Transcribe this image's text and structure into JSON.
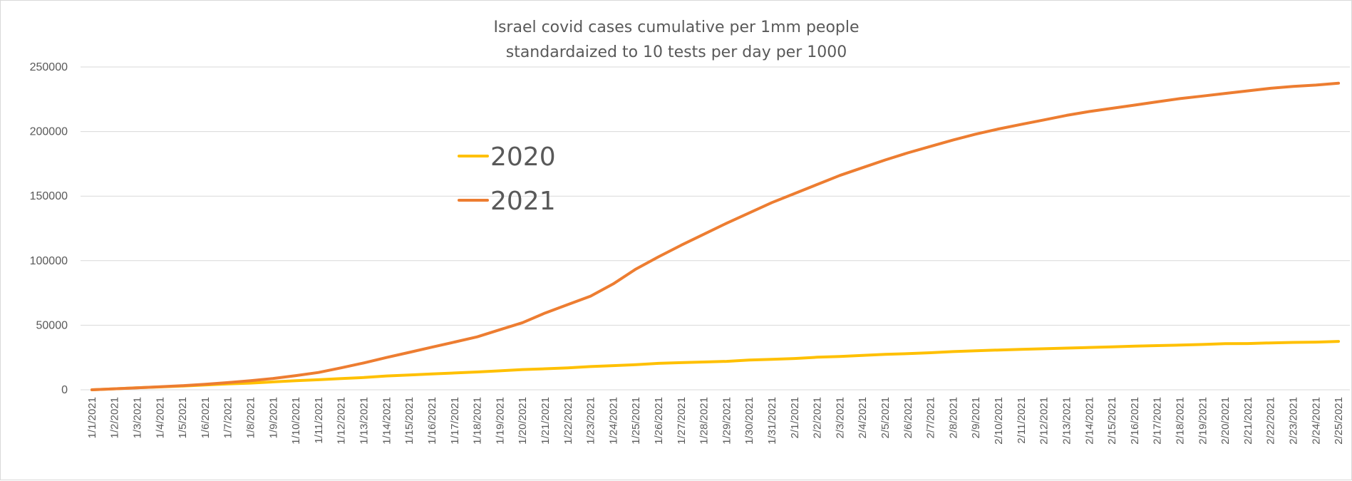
{
  "chart_data": {
    "type": "line",
    "title": "Israel covid cases cumulative per 1mm people",
    "subtitle": "standardaized to 10 tests per day per 1000",
    "xlabel": "",
    "ylabel": "",
    "ylim": [
      0,
      250000
    ],
    "yticks": [
      0,
      50000,
      100000,
      150000,
      200000,
      250000
    ],
    "ytick_labels": [
      "0",
      "50000",
      "100000",
      "150000",
      "200000",
      "250000"
    ],
    "grid": true,
    "legend_position": "center-left",
    "categories": [
      "1/1/2021",
      "1/2/2021",
      "1/3/2021",
      "1/4/2021",
      "1/5/2021",
      "1/6/2021",
      "1/7/2021",
      "1/8/2021",
      "1/9/2021",
      "1/10/2021",
      "1/11/2021",
      "1/12/2021",
      "1/13/2021",
      "1/14/2021",
      "1/15/2021",
      "1/16/2021",
      "1/17/2021",
      "1/18/2021",
      "1/19/2021",
      "1/20/2021",
      "1/21/2021",
      "1/22/2021",
      "1/23/2021",
      "1/24/2021",
      "1/25/2021",
      "1/26/2021",
      "1/27/2021",
      "1/28/2021",
      "1/29/2021",
      "1/30/2021",
      "1/31/2021",
      "2/1/2021",
      "2/2/2021",
      "2/3/2021",
      "2/4/2021",
      "2/5/2021",
      "2/6/2021",
      "2/7/2021",
      "2/8/2021",
      "2/9/2021",
      "2/10/2021",
      "2/11/2021",
      "2/12/2021",
      "2/13/2021",
      "2/14/2021",
      "2/15/2021",
      "2/16/2021",
      "2/17/2021",
      "2/18/2021",
      "2/19/2021",
      "2/20/2021",
      "2/21/2021",
      "2/22/2021",
      "2/23/2021",
      "2/24/2021",
      "2/25/2021"
    ],
    "series": [
      {
        "name": "2020",
        "color": "#FFC000",
        "values": [
          0,
          800,
          1600,
          2200,
          2900,
          3700,
          4500,
          5200,
          6100,
          7000,
          7800,
          8700,
          9500,
          10700,
          11500,
          12300,
          13000,
          13800,
          14700,
          15700,
          16300,
          17000,
          18000,
          18700,
          19400,
          20500,
          21000,
          21500,
          22000,
          23000,
          23600,
          24200,
          25200,
          25800,
          26600,
          27500,
          28000,
          28700,
          29600,
          30200,
          30800,
          31300,
          31800,
          32300,
          32800,
          33300,
          33800,
          34200,
          34600,
          35100,
          35700,
          35800,
          36300,
          36700,
          36900,
          37500
        ]
      },
      {
        "name": "2021",
        "color": "#ED7D31",
        "values": [
          0,
          800,
          1500,
          2300,
          3200,
          4300,
          5600,
          7000,
          8800,
          11000,
          13400,
          17000,
          20800,
          25000,
          29000,
          33000,
          37000,
          41000,
          46500,
          52000,
          59500,
          66000,
          72500,
          82000,
          93500,
          103000,
          112000,
          120500,
          129000,
          137000,
          145000,
          152000,
          159000,
          166000,
          172000,
          178000,
          183500,
          188500,
          193500,
          198000,
          202000,
          205500,
          209000,
          212500,
          215500,
          218000,
          220500,
          223000,
          225500,
          227500,
          229500,
          231500,
          233500,
          235000,
          236000,
          237500
        ]
      }
    ]
  }
}
